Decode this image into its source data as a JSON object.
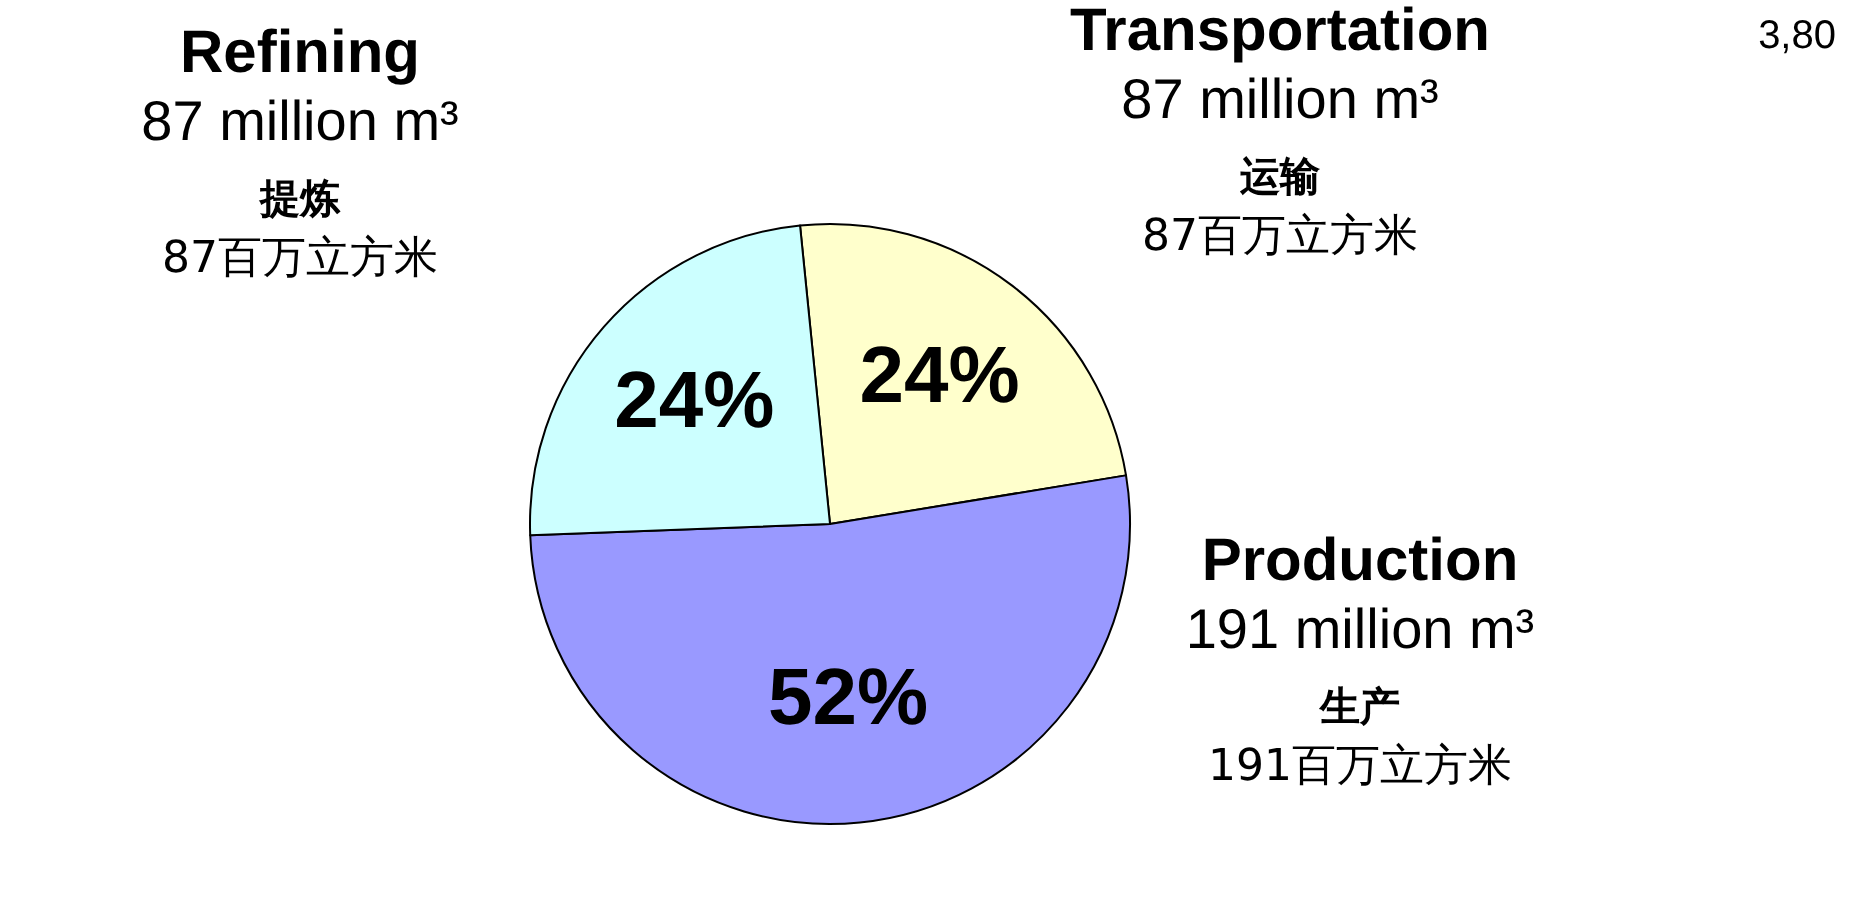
{
  "chart_data": {
    "type": "pie",
    "categories": [
      "Transportation\n87 million m³\n运输\n87百万立方米",
      "Production\n191 million m³\n生产\n191百万立方米",
      "Refining\n87 million m³\n提炼\n87百万立方米"
    ],
    "values": [
      24,
      52,
      24
    ],
    "colors": [
      "#ffffcc",
      "#9999ff",
      "#ccffff"
    ],
    "value_labels": [
      "24%",
      "52%",
      "24%"
    ],
    "annotations": [
      "3,80"
    ]
  }
}
